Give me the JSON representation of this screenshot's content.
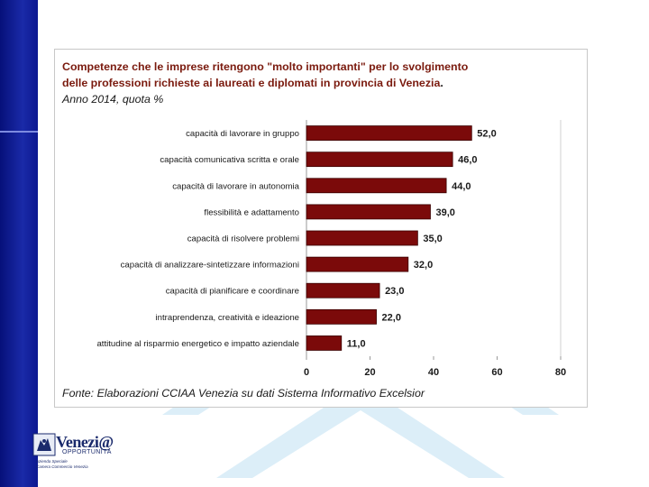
{
  "slide": {
    "title_line1": "Competenze che le imprese ritengono \"molto importanti\" per lo svolgimento",
    "title_line2": "delle professioni richieste ai laureati e diplomati in provincia di Venezia",
    "title_period": ".",
    "subtitle": "Anno 2014, quota %",
    "source": "Fonte: Elaborazioni CCIAA Venezia su dati Sistema Informativo Excelsior"
  },
  "logo": {
    "name": "Venezi@",
    "sub": "OPPORTUNITÀ",
    "tag1": "Azienda Speciale",
    "tag2": "Camera Commercio Venezia"
  },
  "colors": {
    "bar": "#7b0a0a",
    "sidebar": "#0a1685",
    "title": "#7a1a0e"
  },
  "chart_data": {
    "type": "bar",
    "orientation": "horizontal",
    "title": "Competenze che le imprese ritengono \"molto importanti\" per lo svolgimento delle professioni richieste ai laureati e diplomati in provincia di Venezia.",
    "subtitle": "Anno 2014, quota %",
    "categories": [
      "capacità di lavorare in gruppo",
      "capacità comunicativa scritta e orale",
      "capacità di lavorare in autonomia",
      "flessibilità e adattamento",
      "capacità di risolvere problemi",
      "capacità di analizzare-sintetizzare informazioni",
      "capacità di pianificare e coordinare",
      "intraprendenza, creatività e ideazione",
      "attitudine al risparmio energetico e impatto aziendale"
    ],
    "values": [
      52.0,
      46.0,
      44.0,
      39.0,
      35.0,
      32.0,
      23.0,
      22.0,
      11.0
    ],
    "value_labels": [
      "52,0",
      "46,0",
      "44,0",
      "39,0",
      "35,0",
      "32,0",
      "23,0",
      "22,0",
      "11,0"
    ],
    "xlim": [
      0,
      80
    ],
    "xticks": [
      0,
      20,
      40,
      60,
      80
    ],
    "xlabel": "",
    "ylabel": "",
    "grid": false
  }
}
